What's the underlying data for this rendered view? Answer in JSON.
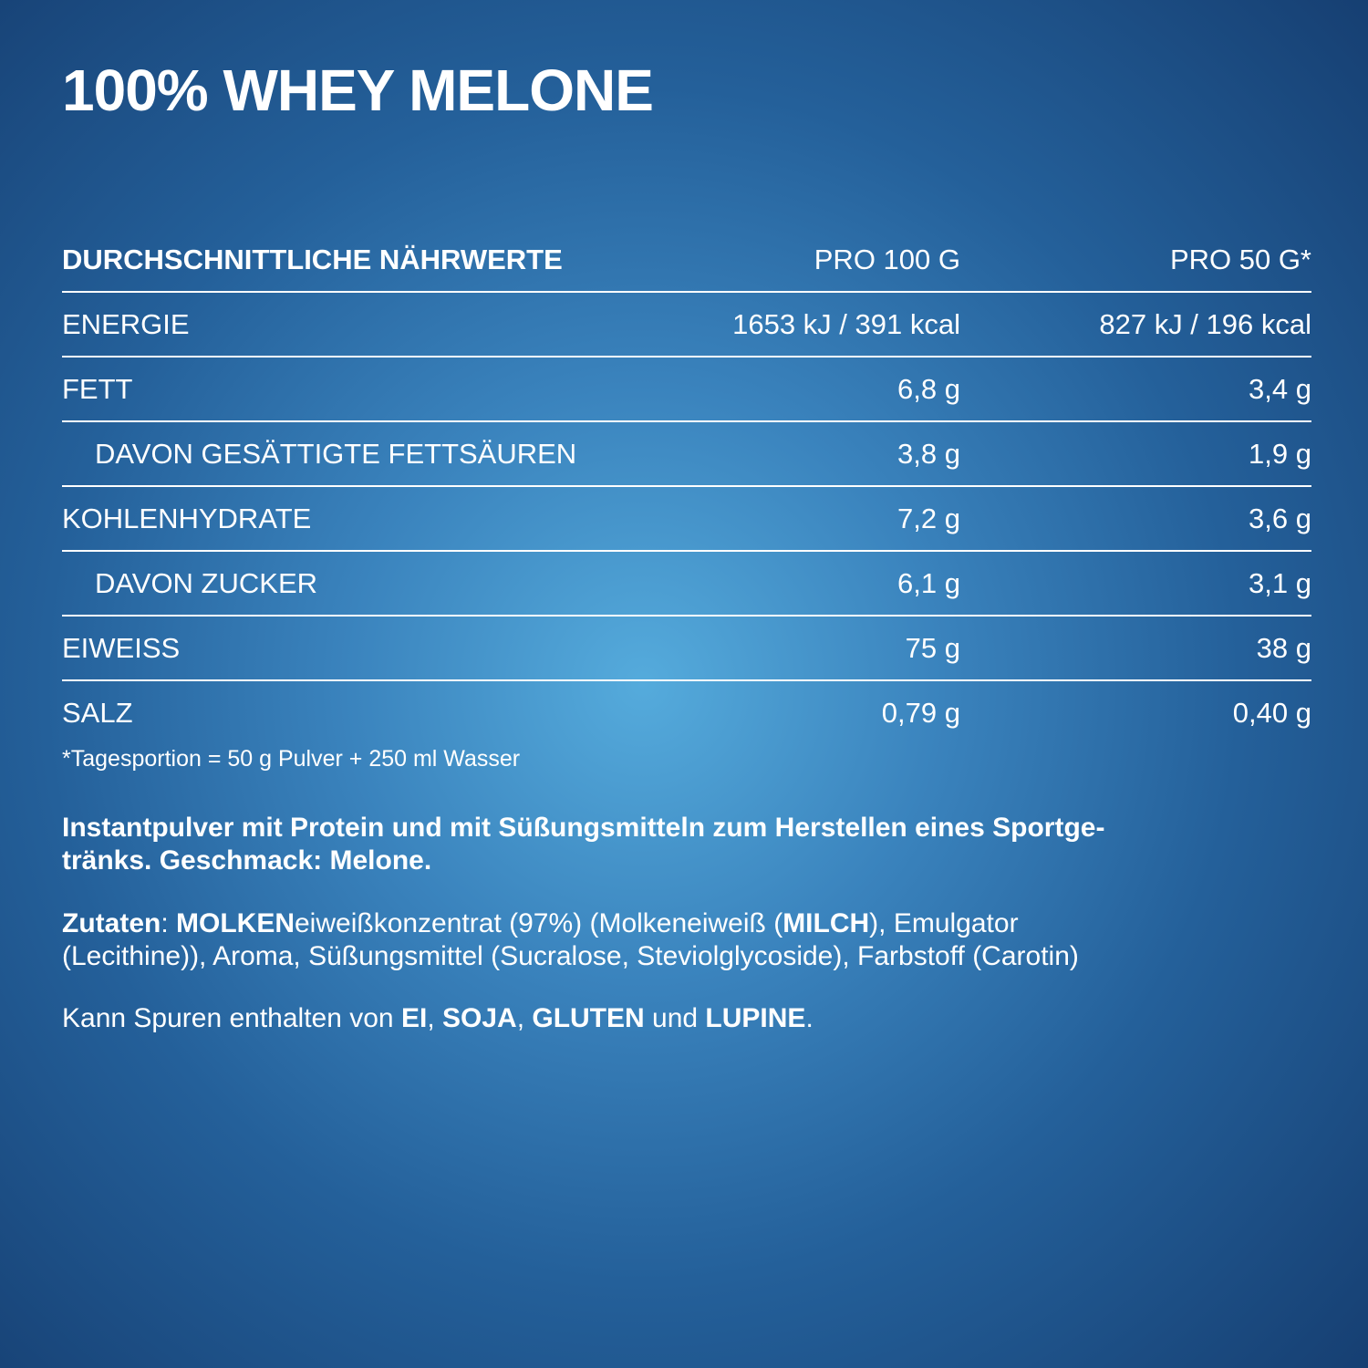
{
  "title": "100% WHEY MELONE",
  "table": {
    "header": [
      "DURCHSCHNITTLICHE NÄHRWERTE",
      "PRO 100 G",
      "PRO 50 G*"
    ],
    "rows": [
      [
        "ENERGIE",
        "1653 kJ / 391 kcal",
        "827 kJ / 196 kcal"
      ],
      [
        "FETT",
        "6,8 g",
        "3,4 g"
      ],
      [
        "DAVON GESÄTTIGTE FETTSÄUREN",
        "3,8 g",
        "1,9 g"
      ],
      [
        "KOHLENHYDRATE",
        "7,2 g",
        "3,6 g"
      ],
      [
        "DAVON ZUCKER",
        "6,1 g",
        "3,1 g"
      ],
      [
        "EIWEISS",
        "75 g",
        "38 g"
      ],
      [
        "SALZ",
        "0,79 g",
        "0,40 g"
      ]
    ]
  },
  "footnote": "*Tagesportion = 50 g Pulver + 250 ml Wasser",
  "description": [
    "Instantpulver mit Protein und mit Süßungsmitteln zum Herstellen eines Sportge-",
    "tränks. Geschmack: Melone."
  ],
  "ingredients": [
    "Zutaten",
    ": ",
    "MOLKEN",
    "eiweißkonzentrat (97%) (Molkeneiweiß (",
    "MILCH",
    "), Emulgator",
    "(Lecithine)), Aroma, Süßungsmittel (Sucralose, Steviolglycoside), Farbstoff (Carotin)"
  ],
  "allergens": [
    "Kann Spuren enthalten von ",
    "EI",
    ", ",
    "SOJA",
    ", ",
    "GLUTEN",
    " und ",
    "LUPINE",
    "."
  ]
}
